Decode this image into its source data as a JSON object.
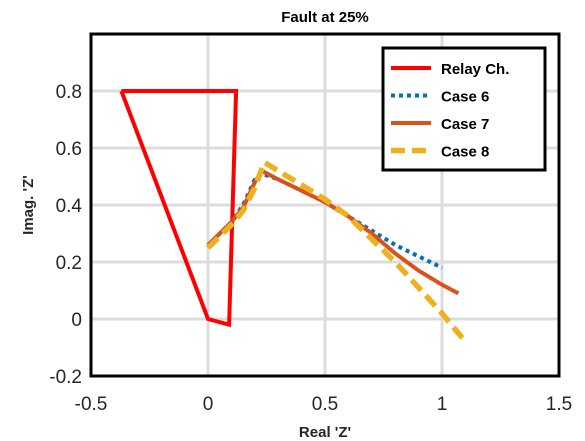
{
  "chart_data": {
    "type": "line",
    "title": "Fault at 25%",
    "xlabel": "Real 'Z'",
    "ylabel": "Imag. 'Z'",
    "xlim": [
      -0.5,
      1.5
    ],
    "ylim": [
      -0.2,
      1.0
    ],
    "xticks": [
      -0.5,
      0,
      0.5,
      1,
      1.5
    ],
    "xtick_labels": [
      "-0.5",
      "0",
      "0.5",
      "1",
      "1.5"
    ],
    "yticks": [
      -0.2,
      0,
      0.2,
      0.4,
      0.6,
      0.8
    ],
    "ytick_labels": [
      "-0.2",
      "0",
      "0.2",
      "0.4",
      "0.6",
      "0.8"
    ],
    "grid": true,
    "legend_position": "top-right",
    "series": [
      {
        "name": "Relay Ch.",
        "color": "#ff0000",
        "style": "solid",
        "x": [
          -0.37,
          0.12,
          0.09,
          0.0,
          -0.37
        ],
        "y": [
          0.8,
          0.8,
          -0.02,
          0.0,
          0.8
        ]
      },
      {
        "name": "Case 6",
        "color": "#0072bd",
        "style": "dotted",
        "x": [
          0.0,
          0.05,
          0.1,
          0.15,
          0.2,
          0.23,
          0.3,
          0.4,
          0.5,
          0.6,
          0.7,
          0.8,
          0.9,
          1.0
        ],
        "y": [
          0.25,
          0.3,
          0.34,
          0.4,
          0.49,
          0.51,
          0.49,
          0.45,
          0.41,
          0.36,
          0.31,
          0.26,
          0.22,
          0.18
        ]
      },
      {
        "name": "Case 7",
        "color": "#d95319",
        "style": "solid",
        "x": [
          0.0,
          0.05,
          0.1,
          0.15,
          0.2,
          0.23,
          0.3,
          0.4,
          0.5,
          0.6,
          0.7,
          0.8,
          0.9,
          1.0,
          1.07
        ],
        "y": [
          0.26,
          0.3,
          0.34,
          0.39,
          0.48,
          0.52,
          0.49,
          0.45,
          0.41,
          0.36,
          0.3,
          0.23,
          0.17,
          0.12,
          0.09
        ]
      },
      {
        "name": "Case 8",
        "color": "#edb120",
        "style": "dashed",
        "x": [
          0.0,
          0.05,
          0.1,
          0.15,
          0.2,
          0.24,
          0.3,
          0.4,
          0.5,
          0.6,
          0.7,
          0.8,
          0.9,
          1.0,
          1.1
        ],
        "y": [
          0.25,
          0.29,
          0.33,
          0.38,
          0.46,
          0.55,
          0.52,
          0.47,
          0.42,
          0.36,
          0.28,
          0.2,
          0.11,
          0.02,
          -0.08
        ]
      }
    ]
  }
}
